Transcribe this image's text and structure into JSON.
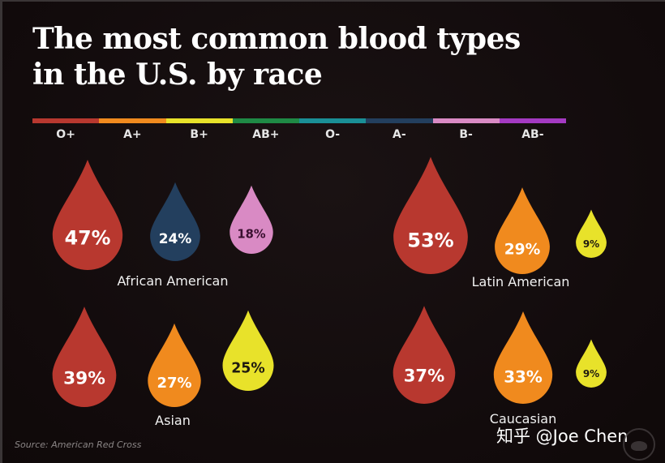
{
  "chart_data": {
    "type": "pictograph",
    "title": "The most common blood types in the U.S. by race",
    "title_lines": [
      "The most common blood types",
      "in the U.S. by race"
    ],
    "legend": [
      {
        "label": "O+",
        "color": "#b8382f"
      },
      {
        "label": "A+",
        "color": "#f08a1e"
      },
      {
        "label": "B+",
        "color": "#e8e22a"
      },
      {
        "label": "AB+",
        "color": "#1f8a45"
      },
      {
        "label": "O-",
        "color": "#1a8f96"
      },
      {
        "label": "A-",
        "color": "#233f5e"
      },
      {
        "label": "B-",
        "color": "#d98ac4"
      },
      {
        "label": "AB-",
        "color": "#a43ac2"
      }
    ],
    "groups": [
      {
        "name": "African American",
        "values": [
          {
            "type": "O+",
            "percent": 47
          },
          {
            "type": "A-",
            "percent": 24
          },
          {
            "type": "B-",
            "percent": 18
          }
        ]
      },
      {
        "name": "Latin American",
        "values": [
          {
            "type": "O+",
            "percent": 53
          },
          {
            "type": "A+",
            "percent": 29
          },
          {
            "type": "B+",
            "percent": 9
          }
        ]
      },
      {
        "name": "Asian",
        "values": [
          {
            "type": "O+",
            "percent": 39
          },
          {
            "type": "A+",
            "percent": 27
          },
          {
            "type": "B+",
            "percent": 25
          }
        ]
      },
      {
        "name": "Caucasian",
        "values": [
          {
            "type": "O+",
            "percent": 37
          },
          {
            "type": "A+",
            "percent": 33
          },
          {
            "type": "B+",
            "percent": 9
          }
        ]
      }
    ],
    "source": "Source: American Red Cross"
  },
  "drop_colors": {
    "O+": "#b8382f",
    "A+": "#f08a1e",
    "B+": "#e8e22a",
    "A-": "#233f5e",
    "B-": "#d98ac4"
  },
  "dark_text_types": [
    "B+",
    "B-"
  ],
  "watermark": "知乎 @Joe Chen"
}
